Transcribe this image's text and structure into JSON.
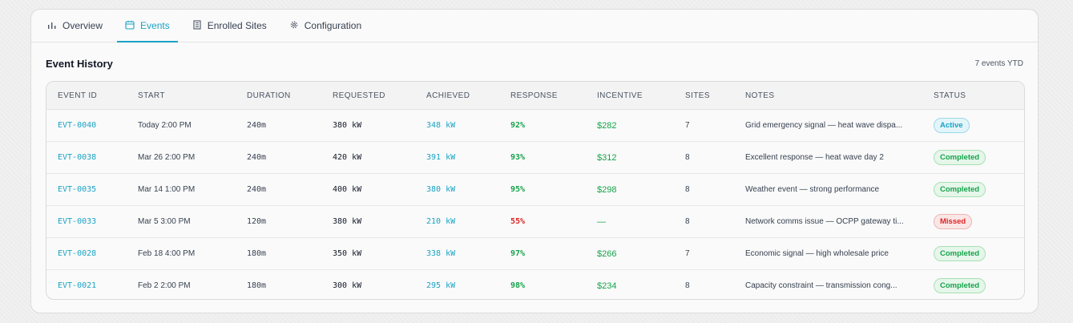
{
  "tabs": [
    {
      "label": "Overview",
      "icon": "bar-chart-icon"
    },
    {
      "label": "Events",
      "icon": "calendar-icon"
    },
    {
      "label": "Enrolled Sites",
      "icon": "building-icon"
    },
    {
      "label": "Configuration",
      "icon": "gear-icon"
    }
  ],
  "section": {
    "title": "Event History",
    "meta": "7 events YTD"
  },
  "table": {
    "headers": [
      "EVENT ID",
      "START",
      "DURATION",
      "REQUESTED",
      "ACHIEVED",
      "RESPONSE",
      "INCENTIVE",
      "SITES",
      "NOTES",
      "STATUS"
    ],
    "rows": [
      {
        "id": "EVT-0040",
        "start": "Today 2:00 PM",
        "duration": "240m",
        "requested": "380 kW",
        "achieved": "348 kW",
        "response": "92%",
        "incentive": "$282",
        "sites": "7",
        "notes": "Grid emergency signal — heat wave dispa...",
        "status": "Active"
      },
      {
        "id": "EVT-0038",
        "start": "Mar 26 2:00 PM",
        "duration": "240m",
        "requested": "420 kW",
        "achieved": "391 kW",
        "response": "93%",
        "incentive": "$312",
        "sites": "8",
        "notes": "Excellent response — heat wave day 2",
        "status": "Completed"
      },
      {
        "id": "EVT-0035",
        "start": "Mar 14 1:00 PM",
        "duration": "240m",
        "requested": "400 kW",
        "achieved": "380 kW",
        "response": "95%",
        "incentive": "$298",
        "sites": "8",
        "notes": "Weather event — strong performance",
        "status": "Completed"
      },
      {
        "id": "EVT-0033",
        "start": "Mar 5 3:00 PM",
        "duration": "120m",
        "requested": "380 kW",
        "achieved": "210 kW",
        "response": "55%",
        "incentive": "—",
        "sites": "8",
        "notes": "Network comms issue — OCPP gateway ti...",
        "status": "Missed"
      },
      {
        "id": "EVT-0028",
        "start": "Feb 18 4:00 PM",
        "duration": "180m",
        "requested": "350 kW",
        "achieved": "338 kW",
        "response": "97%",
        "incentive": "$266",
        "sites": "7",
        "notes": "Economic signal — high wholesale price",
        "status": "Completed"
      },
      {
        "id": "EVT-0021",
        "start": "Feb 2 2:00 PM",
        "duration": "180m",
        "requested": "300 kW",
        "achieved": "295 kW",
        "response": "98%",
        "incentive": "$234",
        "sites": "8",
        "notes": "Capacity constraint — transmission cong...",
        "status": "Completed"
      }
    ]
  },
  "colors": {
    "accent": "#1aa3c4",
    "success": "#16a34a",
    "danger": "#dc2626"
  }
}
